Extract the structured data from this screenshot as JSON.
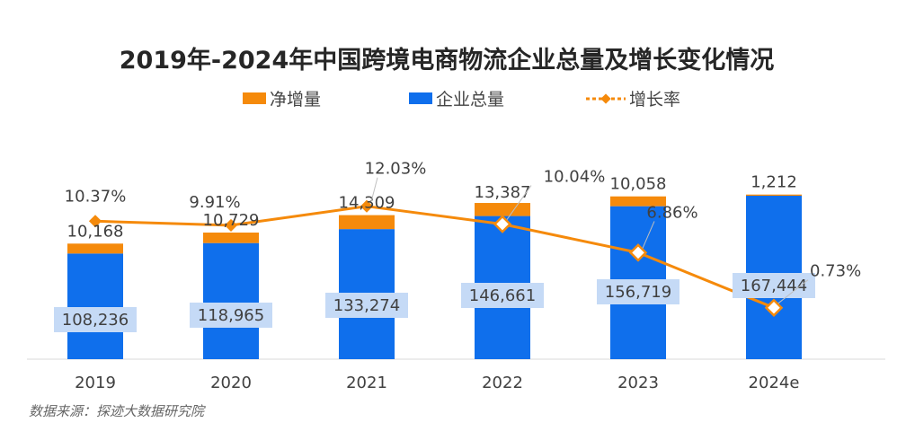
{
  "chart_data": {
    "type": "bar",
    "title": "2019年-2024年中国跨境电商物流企业总量及增长变化情况",
    "categories": [
      "2019",
      "2020",
      "2021",
      "2022",
      "2023",
      "2024e"
    ],
    "series": [
      {
        "name": "企业总量",
        "kind": "bar",
        "color": "#0f6fec",
        "values": [
          108236,
          118965,
          133274,
          146661,
          156719,
          167444
        ],
        "labels": [
          "108,236",
          "118,965",
          "133,274",
          "146,661",
          "156,719",
          "167,444"
        ]
      },
      {
        "name": "净增量",
        "kind": "bar-stacked",
        "color": "#f58a0b",
        "values": [
          10168,
          10729,
          14309,
          13387,
          10058,
          1212
        ],
        "labels": [
          "10,168",
          "10,729",
          "14,309",
          "13,387",
          "10,058",
          "1,212"
        ]
      },
      {
        "name": "增长率",
        "kind": "line",
        "color": "#f58a0b",
        "axis": "secondary",
        "values": [
          10.37,
          9.91,
          12.03,
          10.04,
          6.86,
          0.73
        ],
        "labels": [
          "10.37%",
          "9.91%",
          "12.03%",
          "10.04%",
          "6.86%",
          "0.73%"
        ]
      }
    ],
    "legend": [
      "净增量",
      "企业总量",
      "增长率"
    ],
    "legend_position": "top",
    "ylim_primary": [
      0,
      230000
    ],
    "ylim_secondary": [
      -5,
      20
    ],
    "grid": false,
    "source": "数据来源：探迹大数据研究院"
  }
}
